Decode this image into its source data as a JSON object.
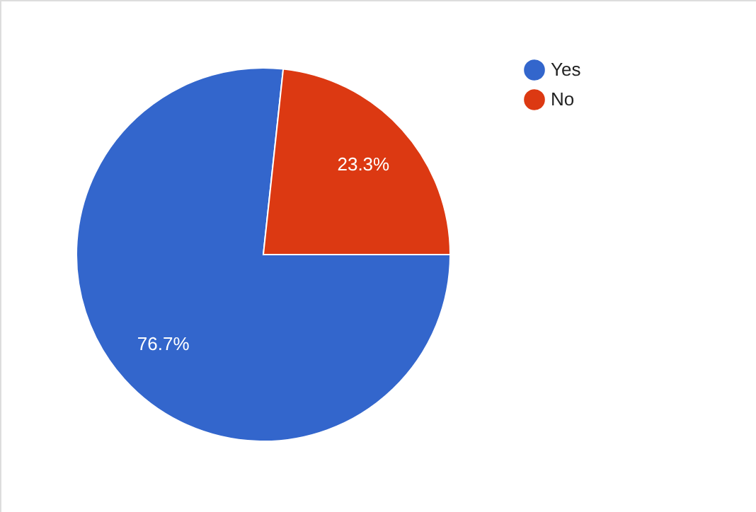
{
  "chart_data": {
    "type": "pie",
    "categories": [
      "Yes",
      "No"
    ],
    "values": [
      76.7,
      23.3
    ],
    "colors": [
      "#3366cc",
      "#dc3912"
    ],
    "value_labels": [
      "76.7%",
      "23.3%"
    ],
    "legend": "top right"
  }
}
